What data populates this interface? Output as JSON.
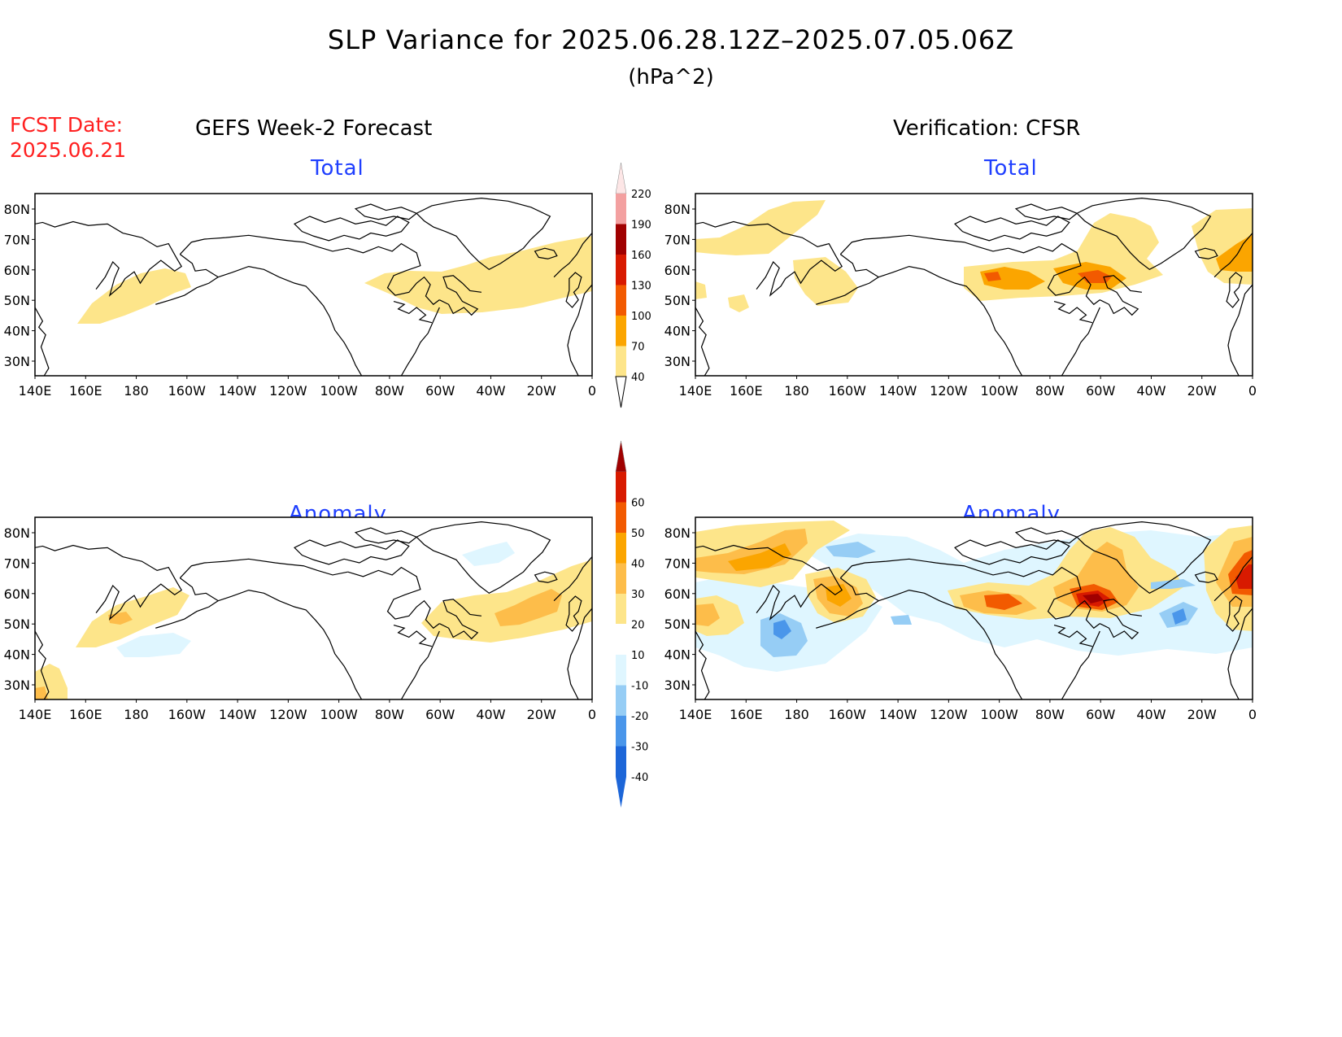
{
  "header": {
    "title": "SLP Variance for 2025.06.28.12Z–2025.07.05.06Z",
    "units": "(hPa^2)",
    "fcst_label": "FCST Date:",
    "fcst_date": "2025.06.21",
    "left_column": "GEFS Week-2 Forecast",
    "right_column": "Verification: CFSR"
  },
  "panels": {
    "top_left_title": "Total",
    "top_right_title": "Total",
    "bottom_left_title": "Anomaly",
    "bottom_right_title": "Anomaly"
  },
  "map": {
    "lon_labels": [
      "140E",
      "160E",
      "180",
      "160W",
      "140W",
      "120W",
      "100W",
      "80W",
      "60W",
      "40W",
      "20W",
      "0"
    ],
    "lat_labels": [
      "80N",
      "70N",
      "60N",
      "50N",
      "40N",
      "30N"
    ]
  },
  "colorbar_total": {
    "labels": [
      "220",
      "190",
      "160",
      "130",
      "100",
      "70",
      "40"
    ],
    "colors": [
      "#fde6e6",
      "#f3a0a0",
      "#a00000",
      "#d81a00",
      "#f25a00",
      "#fba500",
      "#fde58a"
    ]
  },
  "colorbar_anomaly": {
    "labels": [
      "60",
      "50",
      "40",
      "30",
      "20",
      "10",
      "-10",
      "-20",
      "-30",
      "-40"
    ],
    "colors": [
      "#a00000",
      "#d81a00",
      "#f25a00",
      "#fba500",
      "#fdbd4a",
      "#fde58a",
      "#ffffff",
      "#dff6ff",
      "#96cdf5",
      "#4a96ea",
      "#1d66d8"
    ]
  }
}
